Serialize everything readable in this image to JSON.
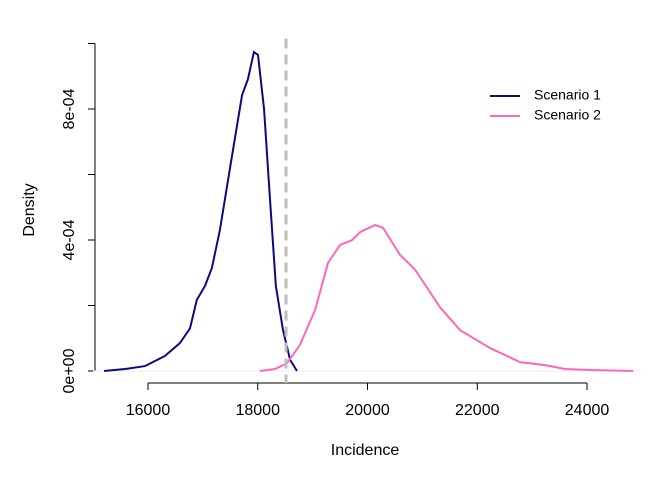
{
  "chart_data": {
    "type": "line",
    "xlabel": "Incidence",
    "ylabel": "Density",
    "xlim": [
      15000,
      25000
    ],
    "ylim": [
      0,
      0.001
    ],
    "xticks": [
      16000,
      18000,
      20000,
      22000,
      24000
    ],
    "yticks": [
      {
        "value": 0,
        "label": "0e+00"
      },
      {
        "value": 0.0004,
        "label": "4e-04"
      },
      {
        "value": 0.0008,
        "label": "8e-04"
      }
    ],
    "yminorticks": [
      0.0002,
      0.0006,
      0.001
    ],
    "vline": 18515,
    "vline_color": "#bebebe",
    "legend": "topright",
    "series": [
      {
        "name": "Scenario 1",
        "color": "#0b0b80",
        "x": [
          15200,
          15580,
          15945,
          16310,
          16580,
          16765,
          16890,
          17040,
          17165,
          17310,
          17495,
          17715,
          17820,
          17930,
          18005,
          18115,
          18225,
          18330,
          18460,
          18590,
          18715
        ],
        "values": [
          0,
          6e-06,
          1.5e-05,
          4.6e-05,
          8.5e-05,
          0.00013,
          0.000217,
          0.00026,
          0.000315,
          0.00043,
          0.00062,
          0.000843,
          0.00089,
          0.000974,
          0.000965,
          0.0008,
          0.00052,
          0.00026,
          0.000125,
          3.4e-05,
          0
        ]
      },
      {
        "name": "Scenario 2",
        "color": "#ff66bb",
        "x": [
          18040,
          18315,
          18535,
          18770,
          19045,
          19280,
          19500,
          19720,
          19865,
          20140,
          20285,
          20590,
          20865,
          21320,
          21685,
          22235,
          22780,
          23235,
          23600,
          24055,
          24840
        ],
        "values": [
          0,
          6e-06,
          2.4e-05,
          8e-05,
          0.000186,
          0.00033,
          0.000385,
          0.0004,
          0.000424,
          0.000446,
          0.000437,
          0.000355,
          0.00031,
          0.000195,
          0.000125,
          7e-05,
          2.7e-05,
          1.8e-05,
          6e-06,
          3e-06,
          0
        ]
      }
    ]
  }
}
